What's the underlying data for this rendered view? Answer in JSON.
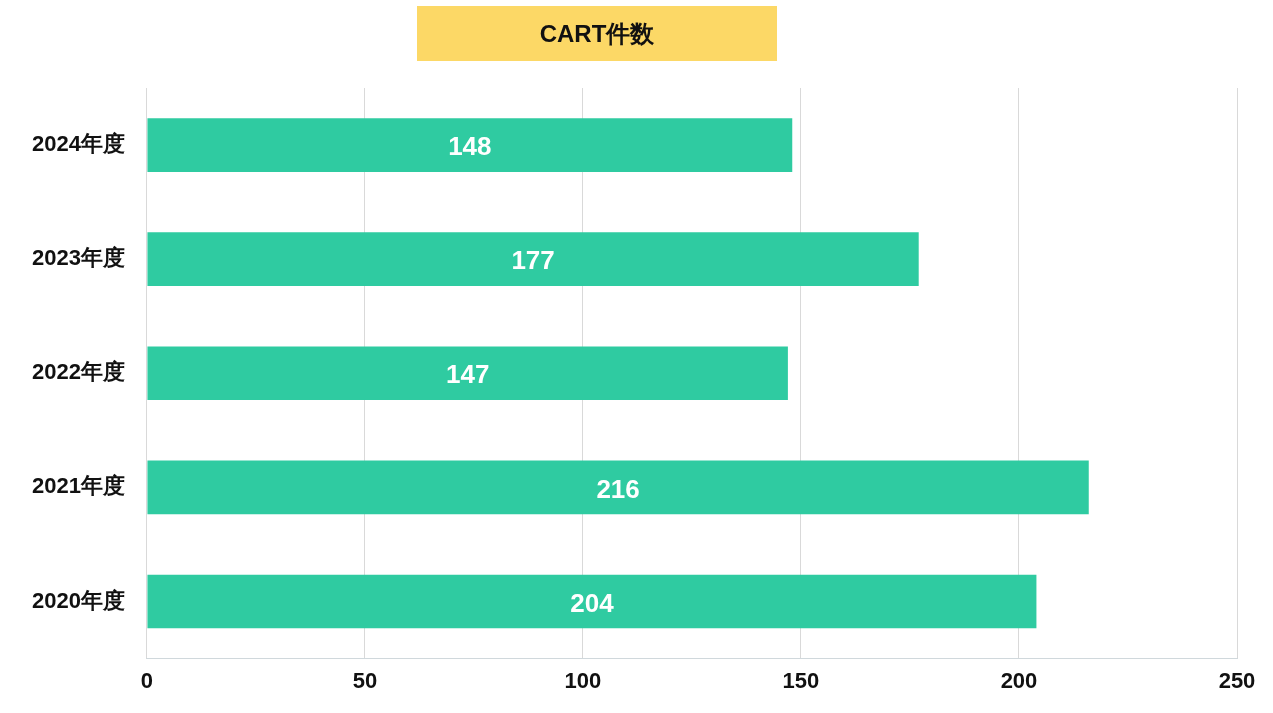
{
  "chart_data": {
    "type": "bar",
    "orientation": "horizontal",
    "title": "CART件数",
    "categories": [
      "2024年度",
      "2023年度",
      "2022年度",
      "2021年度",
      "2020年度"
    ],
    "values": [
      148,
      177,
      147,
      216,
      204
    ],
    "color": "#2fcba1",
    "xlim": [
      0,
      250
    ],
    "xticks": [
      0,
      50,
      100,
      150,
      200,
      250
    ],
    "grid": "x",
    "data_labels": true
  }
}
